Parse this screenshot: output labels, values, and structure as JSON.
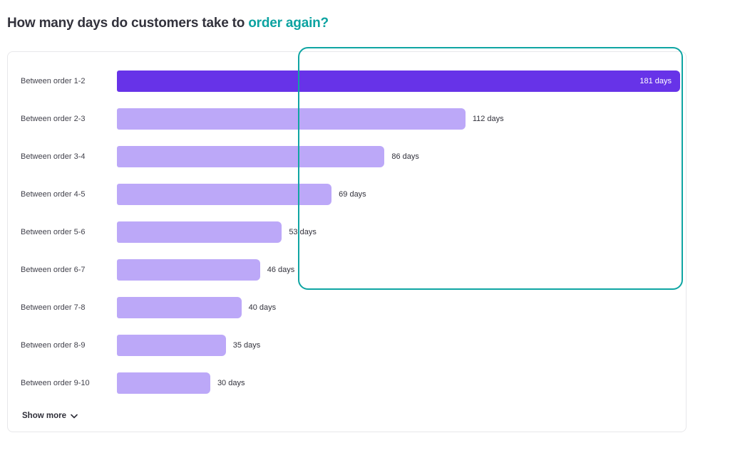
{
  "page": {
    "title_prefix": "How many days do customers take to ",
    "title_accent": "order again?"
  },
  "colors": {
    "accent_teal": "#0ca3a1",
    "bar_primary": "#6733e8",
    "bar_secondary": "#bca8f8",
    "highlight_border": "#0fa5a3"
  },
  "chart_data": {
    "type": "bar",
    "orientation": "horizontal",
    "title": "How many days do customers take to order again?",
    "categories": [
      "Between order 1-2",
      "Between order 2-3",
      "Between order 3-4",
      "Between order 4-5",
      "Between order 5-6",
      "Between order 6-7",
      "Between order 7-8",
      "Between order 8-9",
      "Between order 9-10"
    ],
    "values": [
      181,
      112,
      86,
      69,
      53,
      46,
      40,
      35,
      30
    ],
    "unit": "days",
    "value_labels": [
      "181 days",
      "112 days",
      "86 days",
      "69 days",
      "53 days",
      "46 days",
      "40 days",
      "35 days",
      "30 days"
    ],
    "xlim": [
      0,
      181
    ],
    "grid": false,
    "legend": false,
    "first_bar_label_position": "inside",
    "other_bar_label_position": "outside"
  },
  "footer": {
    "show_more_label": "Show more",
    "show_more_icon": "chevron-down"
  },
  "annotation": {
    "type": "highlight-box",
    "color": "#0fa5a3"
  }
}
